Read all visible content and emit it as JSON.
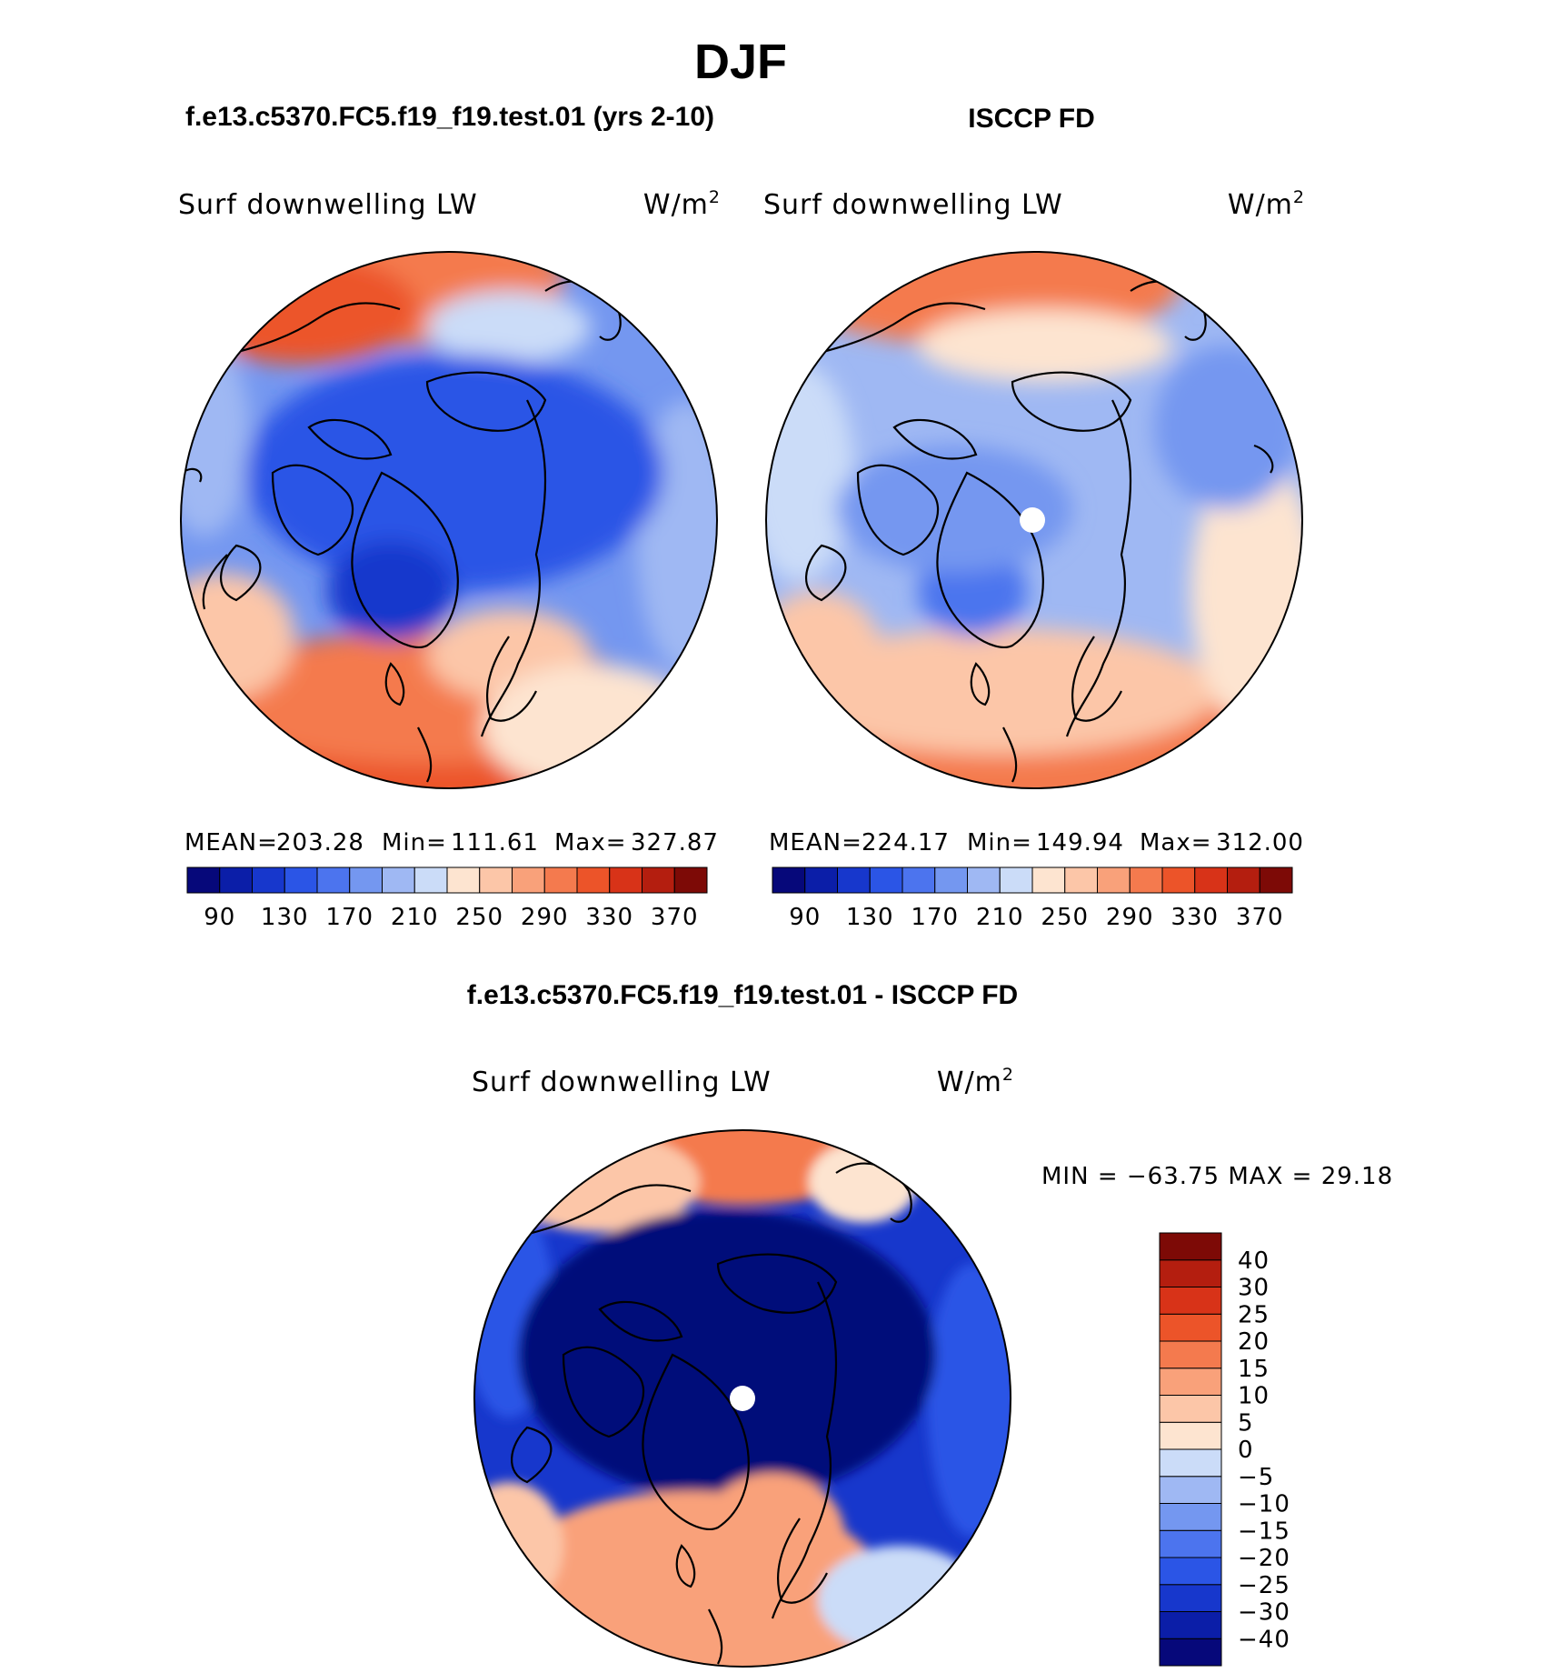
{
  "figure_title": "DJF",
  "panels": [
    {
      "title": "f.e13.c5370.FC5.f19_f19.test.01 (yrs 2-10)",
      "variable": "Surf downwelling LW",
      "units_base": "W/m",
      "units_exp": "2",
      "stats": {
        "mean_label": "MEAN=",
        "mean": "203.28",
        "min_label": "Min=",
        "min": "111.61",
        "max_label": "Max=",
        "max": "327.87"
      }
    },
    {
      "title": "ISCCP FD",
      "variable": "Surf downwelling LW",
      "units_base": "W/m",
      "units_exp": "2",
      "stats": {
        "mean_label": "MEAN=",
        "mean": "224.17",
        "min_label": "Min=",
        "min": "149.94",
        "max_label": "Max=",
        "max": "312.00"
      }
    }
  ],
  "diff_panel": {
    "title": "f.e13.c5370.FC5.f19_f19.test.01 - ISCCP FD",
    "variable": "Surf downwelling LW",
    "units_base": "W/m",
    "units_exp": "2",
    "minmax_text": "MIN = −63.75 MAX =  29.18"
  },
  "horizontal_colorbar": {
    "colors": [
      "#06087a",
      "#0b1ea8",
      "#1737cc",
      "#2b55e6",
      "#4c74ee",
      "#7497f0",
      "#9fb8f3",
      "#cbdcf8",
      "#fde4d0",
      "#fcc6a8",
      "#f9a17a",
      "#f47a4e",
      "#ec5429",
      "#d83318",
      "#b41e0f",
      "#7d0a06"
    ],
    "tick_labels": [
      "90",
      "130",
      "170",
      "210",
      "250",
      "290",
      "330",
      "370"
    ]
  },
  "vertical_colorbar": {
    "colors_bottom_to_top": [
      "#06087a",
      "#0b1ea8",
      "#1737cc",
      "#2b55e6",
      "#4c74ee",
      "#7497f0",
      "#9fb8f3",
      "#cbdcf8",
      "#fde4d0",
      "#fcc6a8",
      "#f9a17a",
      "#f47a4e",
      "#ec5429",
      "#d83318",
      "#b41e0f",
      "#7d0a06"
    ],
    "tick_labels_top_to_bottom": [
      "40",
      "30",
      "25",
      "20",
      "15",
      "10",
      "5",
      "0",
      "−5",
      "−10",
      "−15",
      "−20",
      "−25",
      "−30",
      "−40"
    ]
  },
  "chart_data": [
    {
      "type": "heatmap",
      "title": "f.e13.c5370.FC5.f19_f19.test.01 (yrs 2-10)",
      "variable": "Surf downwelling LW",
      "units": "W/m2",
      "projection": "north polar stereographic",
      "levels": [
        90,
        110,
        130,
        150,
        170,
        190,
        210,
        230,
        250,
        270,
        290,
        310,
        330,
        350,
        370
      ],
      "mean": 203.28,
      "min": 111.61,
      "max": 327.87
    },
    {
      "type": "heatmap",
      "title": "ISCCP FD",
      "variable": "Surf downwelling LW",
      "units": "W/m2",
      "projection": "north polar stereographic",
      "levels": [
        90,
        110,
        130,
        150,
        170,
        190,
        210,
        230,
        250,
        270,
        290,
        310,
        330,
        350,
        370
      ],
      "mean": 224.17,
      "min": 149.94,
      "max": 312.0
    },
    {
      "type": "heatmap",
      "title": "f.e13.c5370.FC5.f19_f19.test.01 - ISCCP FD",
      "variable": "Surf downwelling LW",
      "units": "W/m2",
      "projection": "north polar stereographic",
      "levels": [
        -40,
        -30,
        -25,
        -20,
        -15,
        -10,
        -5,
        0,
        5,
        10,
        15,
        20,
        25,
        30,
        40
      ],
      "min": -63.75,
      "max": 29.18
    }
  ]
}
